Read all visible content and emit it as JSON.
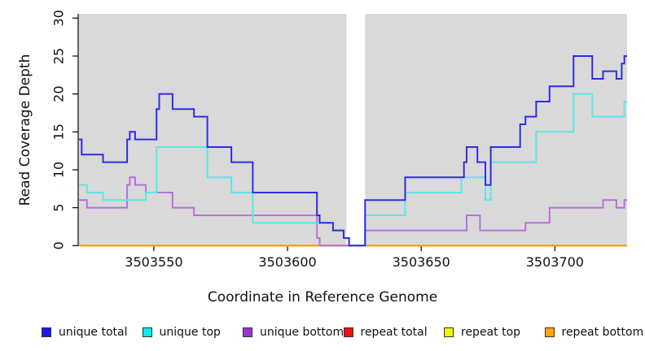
{
  "chart_data": {
    "type": "line",
    "subtype": "step-after",
    "title": "",
    "xlabel": "Coordinate in Reference Genome",
    "ylabel": "Read Coverage Depth",
    "xlim": [
      3503522,
      3503727
    ],
    "ylim": [
      0,
      30
    ],
    "xticks": [
      3503550,
      3503600,
      3503650,
      3503700
    ],
    "yticks": [
      0,
      5,
      10,
      15,
      20,
      25,
      30
    ],
    "plot_background": "#d9d9d9",
    "gap_band": {
      "start": 3503622,
      "end": 3503629,
      "color": "#ffffff"
    },
    "grid": "off",
    "legend_position": "bottom",
    "series": [
      {
        "name": "repeat total",
        "color": "#dd2222",
        "points": [
          [
            3503522,
            0
          ]
        ]
      },
      {
        "name": "repeat top",
        "color": "#f0f000",
        "points": [
          [
            3503522,
            0
          ]
        ]
      },
      {
        "name": "repeat bottom",
        "color": "#ff9b1e",
        "points": [
          [
            3503522,
            0
          ]
        ]
      },
      {
        "name": "unique bottom",
        "color": "#b671dd",
        "points": [
          [
            3503522,
            6
          ],
          [
            3503525,
            5
          ],
          [
            3503540,
            8
          ],
          [
            3503541,
            9
          ],
          [
            3503543,
            8
          ],
          [
            3503547,
            7
          ],
          [
            3503557,
            5
          ],
          [
            3503565,
            4
          ],
          [
            3503611,
            1
          ],
          [
            3503612,
            0
          ],
          [
            3503629,
            2
          ],
          [
            3503667,
            4
          ],
          [
            3503672,
            2
          ],
          [
            3503689,
            3
          ],
          [
            3503698,
            5
          ],
          [
            3503718,
            6
          ],
          [
            3503723,
            5
          ],
          [
            3503726,
            6
          ]
        ]
      },
      {
        "name": "unique top",
        "color": "#5fe6e8",
        "points": [
          [
            3503522,
            8
          ],
          [
            3503525,
            7
          ],
          [
            3503531,
            6
          ],
          [
            3503547,
            7
          ],
          [
            3503551,
            13
          ],
          [
            3503570,
            9
          ],
          [
            3503579,
            7
          ],
          [
            3503587,
            3
          ],
          [
            3503617,
            2
          ],
          [
            3503621,
            1
          ],
          [
            3503623,
            0
          ],
          [
            3503629,
            4
          ],
          [
            3503644,
            7
          ],
          [
            3503665,
            9
          ],
          [
            3503674,
            6
          ],
          [
            3503676,
            11
          ],
          [
            3503693,
            15
          ],
          [
            3503707,
            20
          ],
          [
            3503714,
            17
          ],
          [
            3503726,
            19
          ]
        ]
      },
      {
        "name": "unique total",
        "color": "#2e2ee0",
        "points": [
          [
            3503522,
            14
          ],
          [
            3503523,
            12
          ],
          [
            3503531,
            11
          ],
          [
            3503540,
            14
          ],
          [
            3503541,
            15
          ],
          [
            3503543,
            14
          ],
          [
            3503551,
            18
          ],
          [
            3503552,
            20
          ],
          [
            3503557,
            18
          ],
          [
            3503565,
            17
          ],
          [
            3503570,
            13
          ],
          [
            3503579,
            11
          ],
          [
            3503587,
            7
          ],
          [
            3503611,
            4
          ],
          [
            3503612,
            3
          ],
          [
            3503617,
            2
          ],
          [
            3503621,
            1
          ],
          [
            3503623,
            0
          ],
          [
            3503629,
            6
          ],
          [
            3503644,
            9
          ],
          [
            3503666,
            11
          ],
          [
            3503667,
            13
          ],
          [
            3503671,
            11
          ],
          [
            3503674,
            8
          ],
          [
            3503676,
            13
          ],
          [
            3503687,
            16
          ],
          [
            3503689,
            17
          ],
          [
            3503693,
            19
          ],
          [
            3503698,
            21
          ],
          [
            3503707,
            25
          ],
          [
            3503714,
            22
          ],
          [
            3503718,
            23
          ],
          [
            3503723,
            22
          ],
          [
            3503725,
            24
          ],
          [
            3503726,
            25
          ]
        ]
      }
    ]
  },
  "legend": {
    "items": [
      {
        "label": "unique total",
        "color": "#1a1aea"
      },
      {
        "label": "unique top",
        "color": "#00eeee"
      },
      {
        "label": "unique bottom",
        "color": "#9c33d6"
      },
      {
        "label": "repeat total",
        "color": "#ee1111"
      },
      {
        "label": "repeat top",
        "color": "#f5f500"
      },
      {
        "label": "repeat bottom",
        "color": "#ffa500"
      }
    ]
  }
}
